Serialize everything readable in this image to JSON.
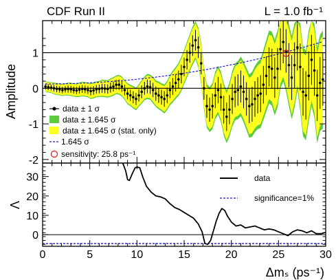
{
  "header": {
    "experiment": "CDF Run II",
    "luminosity": "L = 1.0 fb⁻¹"
  },
  "chart_data": [
    {
      "type": "line",
      "panel": "top",
      "ylabel": "Amplitude",
      "xlim": [
        0,
        30
      ],
      "ylim": [
        -2.1,
        1.9
      ],
      "yticks": [
        -2,
        -1,
        0,
        1
      ],
      "ytick_labels": [
        "-2",
        "-1",
        "0",
        "1"
      ],
      "reference_lines": [
        0,
        1
      ],
      "x": [
        0.3,
        0.6,
        0.9,
        1.2,
        1.5,
        1.8,
        2.1,
        2.4,
        2.7,
        3.0,
        3.3,
        3.6,
        3.9,
        4.2,
        4.5,
        4.8,
        5.1,
        5.4,
        5.7,
        6.0,
        6.3,
        6.6,
        6.9,
        7.2,
        7.5,
        7.8,
        8.1,
        8.4,
        8.7,
        9.0,
        9.3,
        9.6,
        9.9,
        10.2,
        10.5,
        10.8,
        11.1,
        11.4,
        11.7,
        12.0,
        12.3,
        12.6,
        12.9,
        13.2,
        13.5,
        13.8,
        14.1,
        14.4,
        14.7,
        15.0,
        15.3,
        15.6,
        15.9,
        16.2,
        16.5,
        16.8,
        17.1,
        17.4,
        17.7,
        18.0,
        18.3,
        18.6,
        18.9,
        19.2,
        19.5,
        19.8,
        20.1,
        20.4,
        20.7,
        21.0,
        21.3,
        21.6,
        21.9,
        22.2,
        22.5,
        22.8,
        23.1,
        23.4,
        23.7,
        24.0,
        24.3,
        24.6,
        24.9,
        25.2,
        25.5,
        25.8,
        26.1,
        26.4,
        26.7,
        27.0,
        27.3,
        27.6,
        27.9,
        28.2,
        28.5,
        28.8,
        29.1,
        29.4,
        29.7
      ],
      "series": [
        {
          "name": "data ± 1 σ",
          "values": [
            0.05,
            0.03,
            0.02,
            0.0,
            -0.02,
            -0.03,
            -0.05,
            -0.03,
            -0.02,
            -0.03,
            -0.05,
            -0.06,
            -0.04,
            -0.02,
            -0.03,
            -0.05,
            -0.08,
            -0.06,
            -0.03,
            -0.02,
            0.0,
            -0.01,
            -0.02,
            0.02,
            0.05,
            0.1,
            0.1,
            0.05,
            -0.05,
            -0.15,
            -0.2,
            -0.25,
            -0.3,
            -0.2,
            -0.1,
            0.0,
            0.05,
            0.03,
            -0.05,
            -0.15,
            -0.2,
            -0.25,
            -0.3,
            -0.2,
            -0.05,
            0.05,
            0.15,
            0.25,
            0.4,
            0.6,
            0.8,
            1.0,
            1.2,
            1.35,
            1.15,
            0.7,
            0.0,
            -0.5,
            -0.6,
            -0.5,
            -0.2,
            -0.05,
            -0.25,
            -0.6,
            -0.8,
            -0.6,
            -0.3,
            -0.1,
            -0.05,
            0.05,
            -0.1,
            -0.3,
            -0.5,
            -0.45,
            -0.3,
            -0.2,
            -0.15,
            0.1,
            0.35,
            0.6,
            0.55,
            0.3,
            0.55,
            1.1,
            1.3,
            1.05,
            0.65,
            0.3,
            0.65,
            1.15,
            0.6,
            -0.1,
            -0.2,
            0.35,
            0.8,
            0.5,
            -0.2,
            0.15,
            0.25
          ],
          "uncertainty_1sigma": [
            0.08,
            0.08,
            0.08,
            0.09,
            0.09,
            0.09,
            0.09,
            0.09,
            0.1,
            0.1,
            0.1,
            0.1,
            0.11,
            0.11,
            0.11,
            0.11,
            0.12,
            0.12,
            0.12,
            0.12,
            0.13,
            0.13,
            0.13,
            0.14,
            0.14,
            0.14,
            0.15,
            0.15,
            0.15,
            0.16,
            0.16,
            0.17,
            0.17,
            0.17,
            0.18,
            0.18,
            0.19,
            0.19,
            0.2,
            0.2,
            0.21,
            0.21,
            0.22,
            0.22,
            0.23,
            0.24,
            0.24,
            0.25,
            0.26,
            0.26,
            0.27,
            0.28,
            0.29,
            0.29,
            0.3,
            0.31,
            0.32,
            0.33,
            0.34,
            0.35,
            0.36,
            0.37,
            0.38,
            0.39,
            0.4,
            0.41,
            0.42,
            0.43,
            0.44,
            0.45,
            0.46,
            0.47,
            0.48,
            0.49,
            0.5,
            0.51,
            0.52,
            0.53,
            0.54,
            0.55,
            0.56,
            0.57,
            0.58,
            0.59,
            0.6,
            0.61,
            0.62,
            0.63,
            0.64,
            0.65,
            0.66,
            0.67,
            0.68,
            0.69,
            0.7,
            0.71,
            0.72,
            0.73,
            0.74
          ]
        },
        {
          "name": "data ± 1.645 σ"
        },
        {
          "name": "data ± 1.645 σ (stat. only)"
        },
        {
          "name": "1.645 σ"
        }
      ],
      "sensitivity_marker": {
        "x": 25.8,
        "y": 0.98,
        "label": "sensitivity: 25.8 ps⁻¹"
      },
      "legend_position": "lower-left",
      "colors": {
        "band_total": "#5ccc3c",
        "band_stat": "#ffff20",
        "points": "#000000",
        "limit_line": "#1a1acc",
        "sensitivity_marker": "#e02020"
      }
    },
    {
      "type": "line",
      "panel": "bottom",
      "xlabel": "Δmₛ (ps⁻¹)",
      "ylabel": "Λ",
      "xlim": [
        0,
        30
      ],
      "ylim": [
        -6,
        37
      ],
      "xticks": [
        0,
        5,
        10,
        15,
        20,
        25,
        30
      ],
      "xtick_labels": [
        "0",
        "5",
        "10",
        "15",
        "20",
        "25",
        "30"
      ],
      "yticks": [
        0,
        10,
        20,
        30
      ],
      "ytick_labels": [
        "0",
        "10",
        "20",
        "30"
      ],
      "x": [
        8.5,
        8.8,
        9.0,
        9.2,
        9.5,
        9.8,
        10.0,
        10.3,
        10.6,
        11.0,
        11.5,
        12.0,
        12.5,
        13.0,
        13.5,
        14.0,
        14.5,
        15.0,
        15.5,
        16.0,
        16.5,
        16.9,
        17.2,
        17.5,
        17.8,
        18.1,
        18.4,
        18.7,
        19.0,
        19.3,
        19.6,
        20.0,
        20.5,
        21.0,
        21.5,
        22.0,
        22.5,
        23.0,
        23.5,
        24.0,
        24.5,
        25.0,
        25.5,
        26.0,
        26.5,
        27.0,
        27.5,
        28.0,
        28.5,
        29.0,
        29.5,
        30.0
      ],
      "series": [
        {
          "name": "data",
          "values": [
            37,
            33,
            28.5,
            28,
            31.5,
            34.5,
            35,
            34.5,
            30,
            25,
            22,
            20,
            19.5,
            18.5,
            16,
            14,
            13,
            11.5,
            10,
            8.5,
            5.5,
            1.5,
            -4.5,
            -5,
            -3,
            2,
            7,
            11,
            13.5,
            12.5,
            9.5,
            6.5,
            4.5,
            5,
            3.5,
            4,
            4.5,
            3.5,
            2.5,
            3,
            2.5,
            1.5,
            0.5,
            -0.5,
            1.5,
            2.5,
            2,
            1,
            2,
            0.5,
            0.5,
            1.2
          ]
        },
        {
          "name": "significance=1%",
          "value": -4.6
        }
      ],
      "reference_lines": [
        0
      ],
      "legend_position": "top-right",
      "colors": {
        "data": "#000000",
        "significance": "#1a1acc"
      }
    }
  ]
}
